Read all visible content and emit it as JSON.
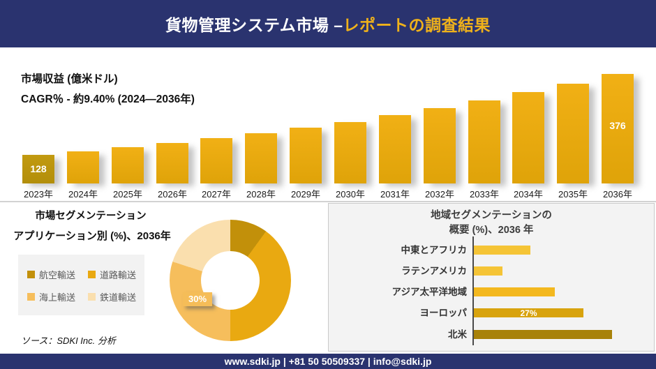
{
  "header": {
    "title_main": "貨物管理システム市場 –",
    "title_accent": "レポートの調査結果"
  },
  "revenue": {
    "metric_label": "市場収益 (億米ドル)",
    "cagr_label": "CAGR％ - 約9.40% (2024―2036年)"
  },
  "segmentation": {
    "title_line1": "市場セグメンテーション",
    "title_line2": "アプリケーション別 (%)、2036年"
  },
  "regional": {
    "title_line1": "地域セグメンテーションの",
    "title_line2": "概要 (%)、2036 年"
  },
  "source_label": "ソース：SDKI Inc. 分析",
  "footer": {
    "text": "www.sdki.jp | +81 50 50509337 | info@sdki.jp"
  },
  "colors": {
    "navy": "#2A336F",
    "accent_gold": "#F0B21A",
    "bar_fill": "#E9A90F",
    "bar_first_fill": "#BB950D",
    "panel_bg": "#F3F3F3",
    "legend_bg": "#F2F2F2",
    "divider": "#D2D2D2"
  },
  "chart_data": [
    {
      "type": "bar",
      "title": "市場収益 (億米ドル)",
      "subtitle": "CAGR％ - 約9.40% (2024―2036年)",
      "categories": [
        "2023年",
        "2024年",
        "2025年",
        "2026年",
        "2027年",
        "2028年",
        "2029年",
        "2030年",
        "2031年",
        "2032年",
        "2033年",
        "2034年",
        "2035年",
        "2036年"
      ],
      "values": [
        128,
        139,
        151,
        164,
        179,
        194,
        211,
        229,
        249,
        271,
        294,
        320,
        347,
        376
      ],
      "value_labels": {
        "0": "128",
        "13": "376"
      },
      "ylabel": "億米ドル",
      "grid": false,
      "legend": false
    },
    {
      "type": "pie",
      "donut": true,
      "title": "市場セグメンテーション アプリケーション別 (%)、2036年",
      "labels": [
        "航空輸送",
        "道路輸送",
        "海上輸送",
        "鉄道輸送"
      ],
      "values": [
        10,
        40,
        30,
        20
      ],
      "colors": [
        "#C2900A",
        "#E9A911",
        "#F6BE5C",
        "#FADFAE"
      ],
      "shown_label": {
        "segment": "海上輸送",
        "text": "30%"
      },
      "legend_position": "left"
    },
    {
      "type": "bar",
      "orientation": "horizontal",
      "title": "地域セグメンテーションの概要 (%)、2036 年",
      "categories": [
        "中東とアフリカ",
        "ラテンアメリカ",
        "アジア太平洋地域",
        "ヨーロッパ",
        "北米"
      ],
      "values": [
        14,
        7,
        20,
        27,
        34
      ],
      "colors": [
        "#F5C436",
        "#F5C436",
        "#F3B81F",
        "#D8A30E",
        "#A8820A"
      ],
      "shown_label": {
        "segment": "ヨーロッパ",
        "text": "27%"
      },
      "grid": false
    }
  ]
}
